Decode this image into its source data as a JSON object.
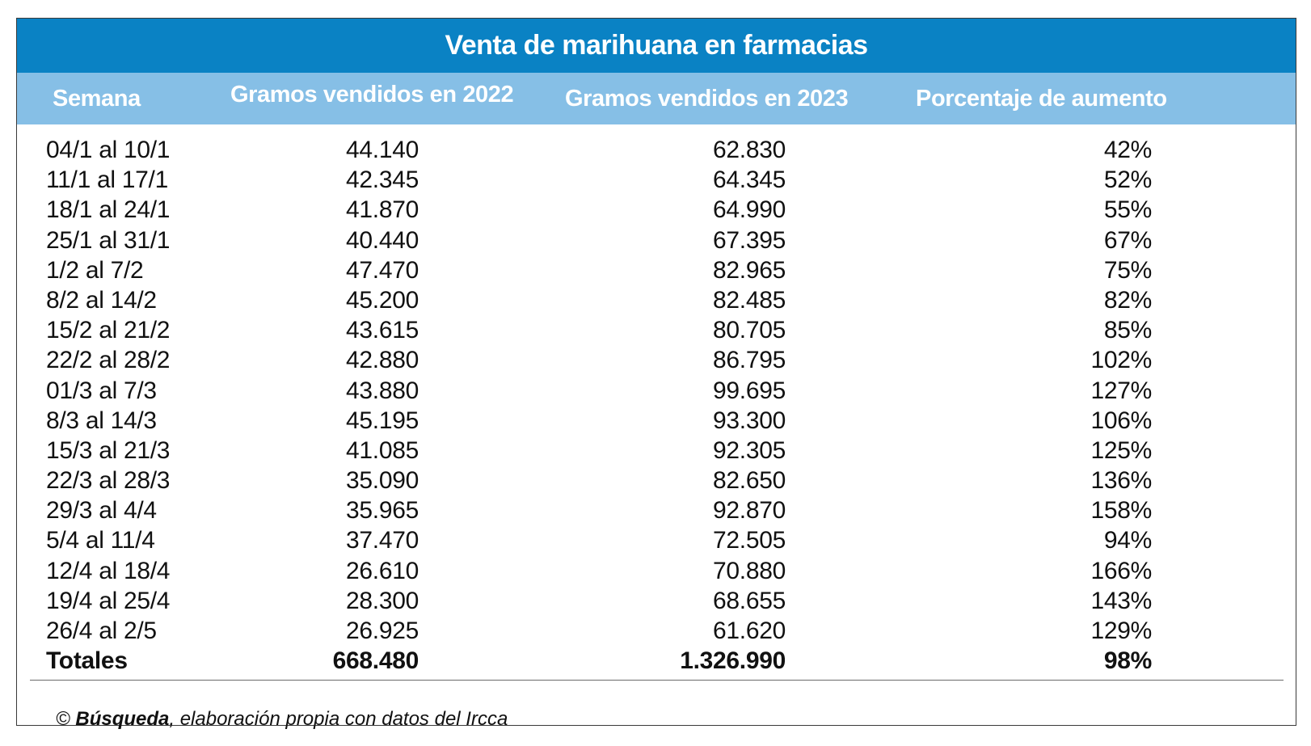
{
  "chart_data": {
    "type": "table",
    "title": "Venta de marihuana en farmacias",
    "columns": [
      "Semana",
      "Gramos vendidos en 2022",
      "Gramos vendidos en 2023",
      "Porcentaje de aumento"
    ],
    "rows": [
      {
        "week": "04/1 al 10/1",
        "g2022": "44.140",
        "g2023": "62.830",
        "pct": "42%"
      },
      {
        "week": "11/1 al 17/1",
        "g2022": "42.345",
        "g2023": "64.345",
        "pct": "52%"
      },
      {
        "week": "18/1 al 24/1",
        "g2022": "41.870",
        "g2023": "64.990",
        "pct": "55%"
      },
      {
        "week": "25/1 al 31/1",
        "g2022": "40.440",
        "g2023": "67.395",
        "pct": "67%"
      },
      {
        "week": "1/2 al 7/2",
        "g2022": "47.470",
        "g2023": "82.965",
        "pct": "75%"
      },
      {
        "week": "8/2 al 14/2",
        "g2022": "45.200",
        "g2023": "82.485",
        "pct": "82%"
      },
      {
        "week": "15/2 al 21/2",
        "g2022": "43.615",
        "g2023": "80.705",
        "pct": "85%"
      },
      {
        "week": "22/2 al 28/2",
        "g2022": "42.880",
        "g2023": "86.795",
        "pct": "102%"
      },
      {
        "week": "01/3 al 7/3",
        "g2022": "43.880",
        "g2023": "99.695",
        "pct": "127%"
      },
      {
        "week": "8/3 al 14/3",
        "g2022": "45.195",
        "g2023": "93.300",
        "pct": "106%"
      },
      {
        "week": "15/3 al 21/3",
        "g2022": "41.085",
        "g2023": "92.305",
        "pct": "125%"
      },
      {
        "week": "22/3 al 28/3",
        "g2022": "35.090",
        "g2023": "82.650",
        "pct": "136%"
      },
      {
        "week": "29/3 al 4/4",
        "g2022": "35.965",
        "g2023": "92.870",
        "pct": "158%"
      },
      {
        "week": "5/4 al 11/4",
        "g2022": "37.470",
        "g2023": "72.505",
        "pct": "94%"
      },
      {
        "week": "12/4 al 18/4",
        "g2022": "26.610",
        "g2023": "70.880",
        "pct": "166%"
      },
      {
        "week": "19/4 al 25/4",
        "g2022": "28.300",
        "g2023": "68.655",
        "pct": "143%"
      },
      {
        "week": "26/4 al 2/5",
        "g2022": "26.925",
        "g2023": "61.620",
        "pct": "129%"
      }
    ],
    "totals": {
      "label": "Totales",
      "g2022": "668.480",
      "g2023": "1.326.990",
      "pct": "98%"
    }
  },
  "source": {
    "prefix": "© ",
    "brand": "Búsqueda",
    "rest": ", elaboración propia con datos del Ircca"
  },
  "colors": {
    "title_bar": "#0a82c4",
    "header_bar": "#86bfe6",
    "text": "#111111"
  }
}
